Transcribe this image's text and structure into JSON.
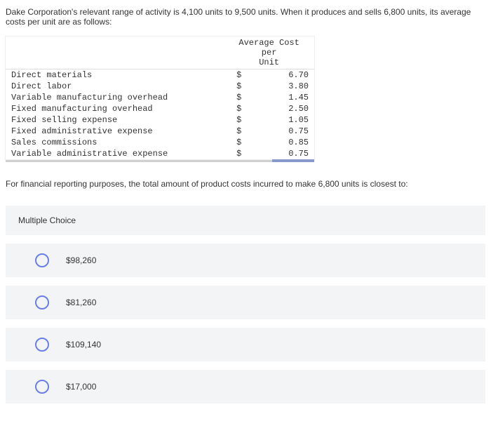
{
  "question_line1": "Dake Corporation's relevant range of activity is 4,100 units to 9,500 units. When it produces and sells 6,800 units, its average costs per unit are as follows:",
  "table": {
    "header_line1": "Average Cost per",
    "header_line2": "Unit",
    "currency_symbol": "$",
    "rows": [
      {
        "label": "Direct materials",
        "amount": "6.70"
      },
      {
        "label": "Direct labor",
        "amount": "3.80"
      },
      {
        "label": "Variable manufacturing overhead",
        "amount": "1.45"
      },
      {
        "label": "Fixed manufacturing overhead",
        "amount": "2.50"
      },
      {
        "label": "Fixed selling expense",
        "amount": "1.05"
      },
      {
        "label": "Fixed administrative expense",
        "amount": "0.75"
      },
      {
        "label": "Sales commissions",
        "amount": "0.85"
      },
      {
        "label": "Variable administrative expense",
        "amount": "0.75"
      }
    ],
    "styling": {
      "font_family": "Courier New",
      "font_size_pt": 9,
      "text_color": "#333333",
      "border_color": "#dddddd",
      "scrollbar_track_color": "#d0d0d0",
      "scrollbar_thumb_color": "#8899cc"
    }
  },
  "followup_text": "For financial reporting purposes, the total amount of product costs incurred to make 6,800 units is closest to:",
  "multiple_choice": {
    "heading": "Multiple Choice",
    "options": [
      "$98,260",
      "$81,260",
      "$109,140",
      "$17,000"
    ],
    "styling": {
      "card_bg": "#f3f4f6",
      "radio_border_color": "#6a7eea",
      "font_size_pt": 9,
      "text_color": "#333333"
    }
  },
  "page_styling": {
    "background_color": "#ffffff",
    "body_font_family": "Arial",
    "body_font_size_pt": 9
  }
}
